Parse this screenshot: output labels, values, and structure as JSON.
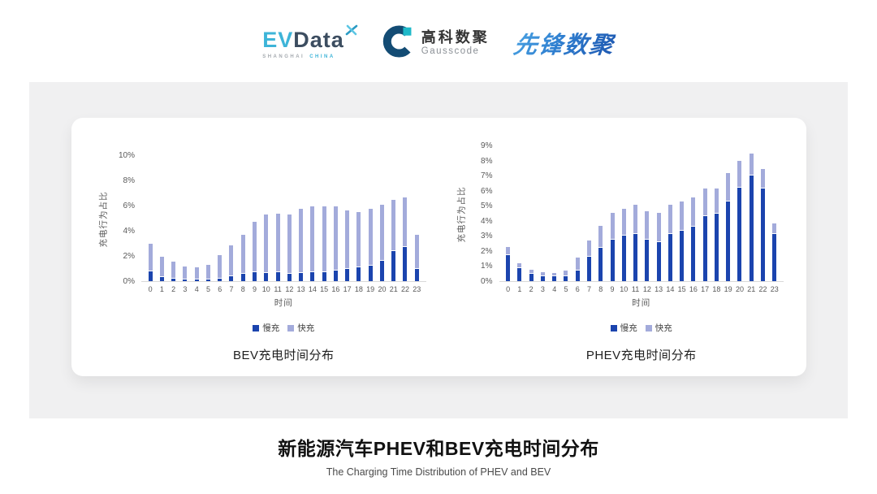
{
  "header": {
    "evdata": {
      "ev": "EV",
      "data": "Data",
      "sub_left": "SHANGHAI",
      "sub_right": "CHINA"
    },
    "gausscode": {
      "cn": "高科数聚",
      "en": "Gausscode"
    },
    "pioneer": {
      "text": "先锋数聚"
    }
  },
  "footer": {
    "title": "新能源汽车PHEV和BEV充电时间分布",
    "subtitle": "The Charging Time Distribution of PHEV and BEV"
  },
  "colors": {
    "slow_charge": "#1b44ae",
    "fast_charge": "#a3abdb",
    "panel_bg": "#f0f0f1",
    "axis_line": "#d9d9d9",
    "evdata_cyan": "#3db4d8",
    "evdata_dark": "#3c4d60",
    "gauss_blue": "#134c74",
    "gauss_teal": "#1fb9c9",
    "pioneer_blue": "#1e57b0"
  },
  "chart_data": [
    {
      "type": "bar",
      "stacked": true,
      "title": "BEV充电时间分布",
      "xlabel": "时间",
      "ylabel": "充电行为占比",
      "ylim": [
        0,
        10
      ],
      "ytick_step": 2,
      "ytick_suffix": "%",
      "grid": false,
      "legend_position": "bottom",
      "categories": [
        "0",
        "1",
        "2",
        "3",
        "4",
        "5",
        "6",
        "7",
        "8",
        "9",
        "10",
        "11",
        "12",
        "13",
        "14",
        "15",
        "16",
        "17",
        "18",
        "19",
        "20",
        "21",
        "22",
        "23"
      ],
      "series": [
        {
          "key": "slow",
          "name": "慢充",
          "color": "#1b44ae",
          "values": [
            0.75,
            0.35,
            0.2,
            0.1,
            0.1,
            0.1,
            0.2,
            0.4,
            0.55,
            0.7,
            0.65,
            0.7,
            0.6,
            0.65,
            0.7,
            0.7,
            0.85,
            1.0,
            1.1,
            1.25,
            1.6,
            2.4,
            2.7,
            0.95
          ]
        },
        {
          "key": "fast",
          "name": "快充",
          "color": "#a3abdb",
          "values": [
            2.15,
            1.55,
            1.3,
            1.0,
            0.95,
            1.1,
            1.8,
            2.4,
            3.05,
            3.95,
            4.55,
            4.6,
            4.65,
            5.05,
            5.15,
            5.15,
            5.05,
            4.55,
            4.3,
            4.4,
            4.4,
            4.0,
            3.9,
            2.65
          ]
        }
      ]
    },
    {
      "type": "bar",
      "stacked": true,
      "title": "PHEV充电时间分布",
      "xlabel": "时间",
      "ylabel": "充电行为占比",
      "ylim": [
        0,
        9
      ],
      "ytick_step": 1,
      "ytick_suffix": "%",
      "grid": false,
      "legend_position": "bottom",
      "categories": [
        "0",
        "1",
        "2",
        "3",
        "4",
        "5",
        "6",
        "7",
        "8",
        "9",
        "10",
        "11",
        "12",
        "13",
        "14",
        "15",
        "16",
        "17",
        "18",
        "19",
        "20",
        "21",
        "22",
        "23"
      ],
      "series": [
        {
          "key": "slow",
          "name": "慢充",
          "color": "#1b44ae",
          "values": [
            1.7,
            0.85,
            0.5,
            0.35,
            0.3,
            0.35,
            0.7,
            1.6,
            2.2,
            2.75,
            3.0,
            3.1,
            2.75,
            2.6,
            3.15,
            3.35,
            3.6,
            4.3,
            4.5,
            5.3,
            6.2,
            7.0,
            6.15,
            3.1
          ]
        },
        {
          "key": "fast",
          "name": "快充",
          "color": "#a3abdb",
          "values": [
            0.5,
            0.3,
            0.2,
            0.2,
            0.2,
            0.3,
            0.8,
            1.05,
            1.4,
            1.75,
            1.75,
            1.9,
            1.85,
            1.85,
            1.85,
            1.9,
            1.9,
            1.8,
            1.6,
            1.8,
            1.7,
            1.4,
            1.25,
            0.7
          ]
        }
      ]
    }
  ]
}
